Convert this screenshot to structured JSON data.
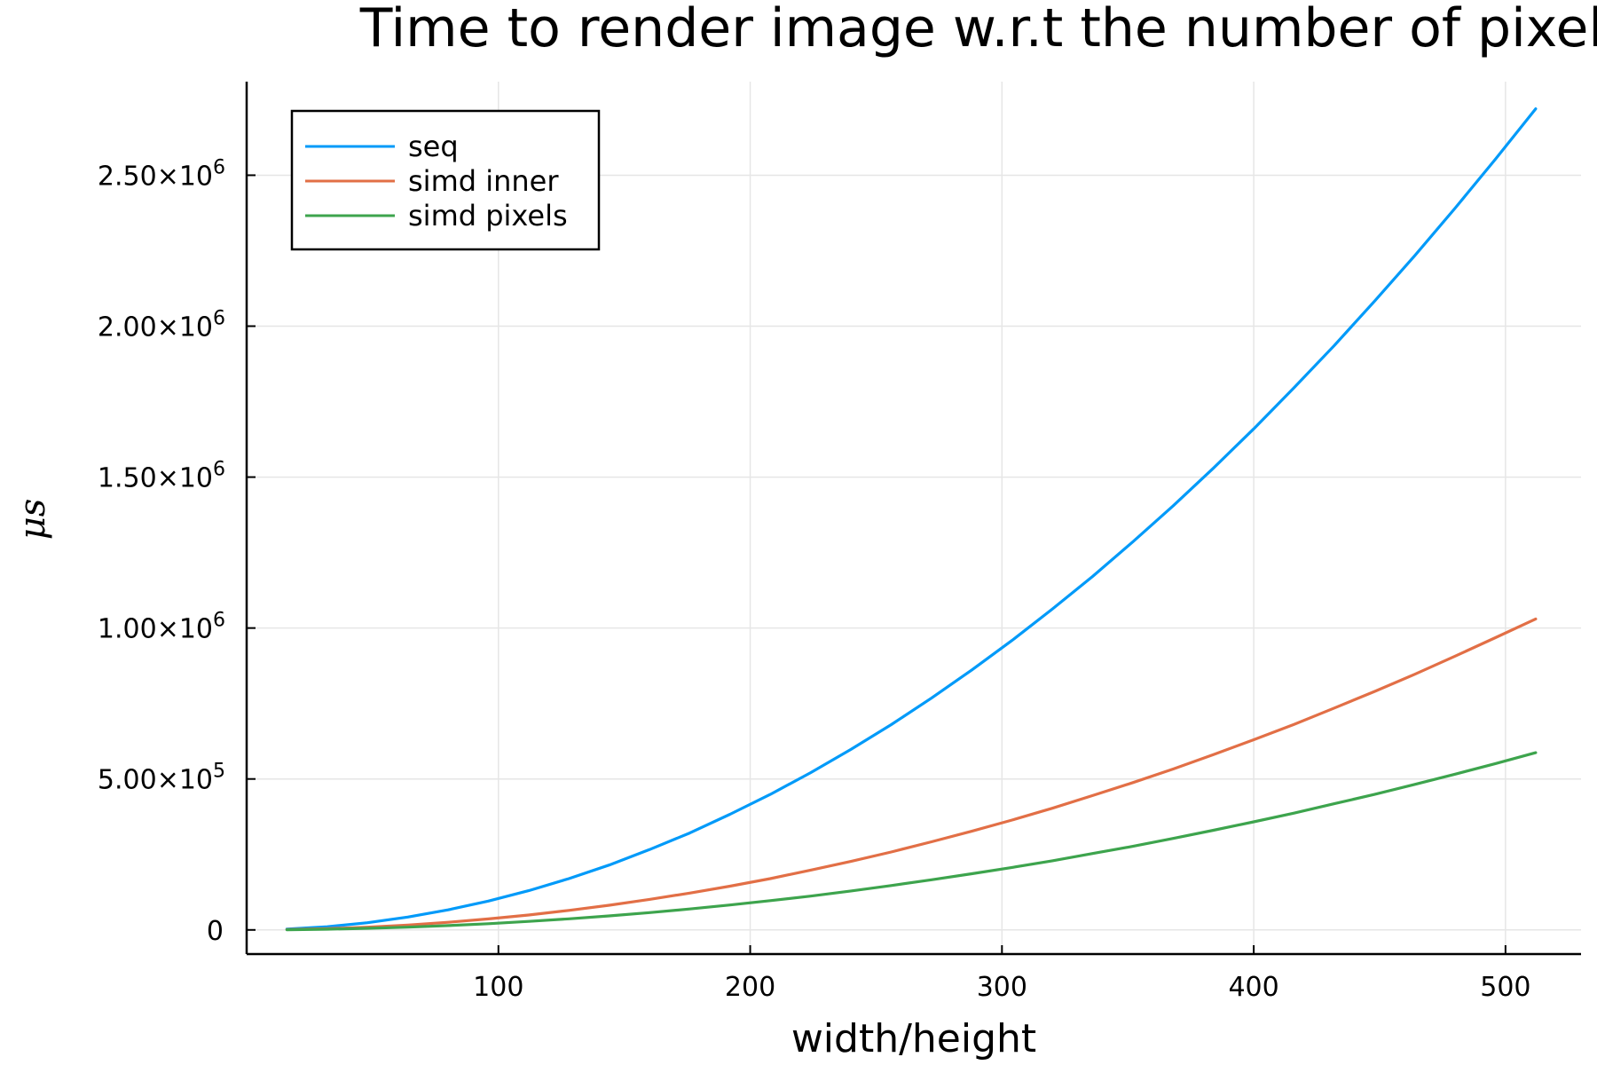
{
  "chart_data": {
    "type": "line",
    "title": "Time to render image w.r.t the number of pixels",
    "xlabel": "width/height",
    "ylabel": "μs",
    "xlim": [
      0,
      530
    ],
    "ylim": [
      -80000,
      2810000
    ],
    "x_ticks": [
      {
        "value": 100,
        "label": "100"
      },
      {
        "value": 200,
        "label": "200"
      },
      {
        "value": 300,
        "label": "300"
      },
      {
        "value": 400,
        "label": "400"
      },
      {
        "value": 500,
        "label": "500"
      }
    ],
    "y_ticks": [
      {
        "value": 0,
        "mantissa": "0",
        "exponent": ""
      },
      {
        "value": 500000,
        "mantissa": "5.00×10",
        "exponent": "5"
      },
      {
        "value": 1000000,
        "mantissa": "1.00×10",
        "exponent": "6"
      },
      {
        "value": 1500000,
        "mantissa": "1.50×10",
        "exponent": "6"
      },
      {
        "value": 2000000,
        "mantissa": "2.00×10",
        "exponent": "6"
      },
      {
        "value": 2500000,
        "mantissa": "2.50×10",
        "exponent": "6"
      }
    ],
    "grid": true,
    "legend_position": "top-left",
    "x": [
      16,
      32,
      48,
      64,
      80,
      96,
      112,
      128,
      144,
      160,
      176,
      192,
      208,
      224,
      240,
      256,
      272,
      288,
      304,
      320,
      336,
      352,
      368,
      384,
      400,
      416,
      432,
      448,
      464,
      480,
      496,
      512
    ],
    "series": [
      {
        "name": "seq",
        "color": "#009af9",
        "values": [
          2660,
          10600,
          23900,
          42500,
          66400,
          95600,
          130000,
          170000,
          215000,
          266000,
          321000,
          383000,
          449000,
          521000,
          598000,
          680000,
          768000,
          861000,
          959000,
          1063000,
          1171000,
          1286000,
          1405000,
          1530000,
          1660000,
          1796000,
          1936000,
          2083000,
          2234000,
          2391000,
          2553000,
          2720000
        ]
      },
      {
        "name": "simd inner",
        "color": "#e26f46",
        "values": [
          1010,
          4030,
          9070,
          16100,
          25200,
          36300,
          49400,
          64500,
          81700,
          101000,
          122000,
          145000,
          170000,
          198000,
          227000,
          258000,
          292000,
          327000,
          364000,
          403000,
          445000,
          488000,
          533000,
          581000,
          630000,
          681000,
          735000,
          790000,
          847000,
          907000,
          968000,
          1030000
        ]
      },
      {
        "name": "simd pixels",
        "color": "#3da44d",
        "values": [
          573,
          2290,
          5160,
          9180,
          14300,
          20600,
          28100,
          36700,
          46400,
          57300,
          69400,
          82600,
          96900,
          112000,
          129000,
          147000,
          166000,
          186000,
          207000,
          229000,
          253000,
          277000,
          303000,
          330000,
          358000,
          387000,
          418000,
          449000,
          482000,
          516000,
          551000,
          587000
        ]
      }
    ]
  }
}
